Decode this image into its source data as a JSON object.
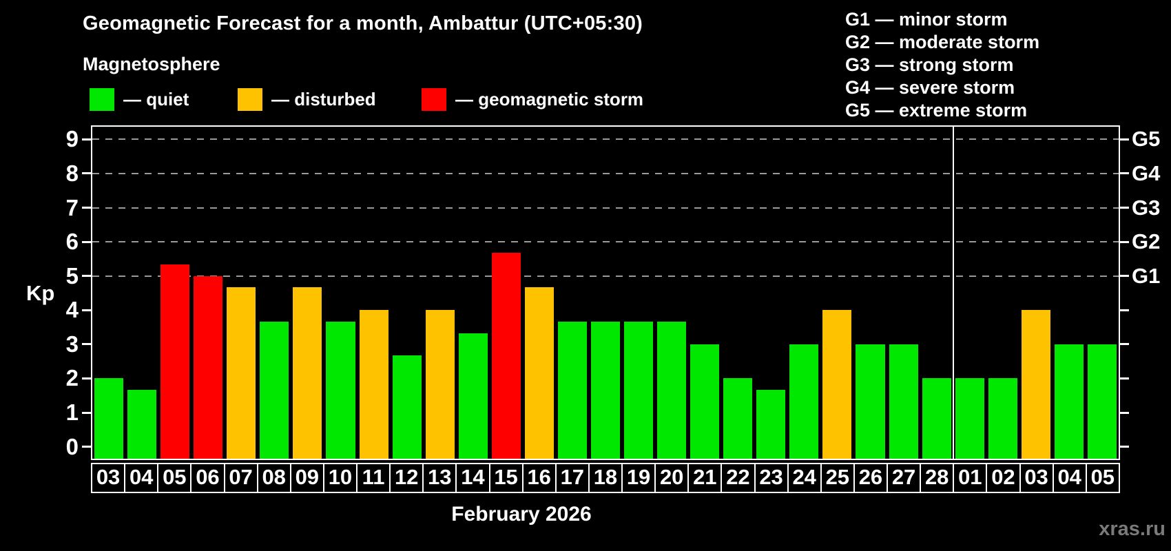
{
  "title": "Geomagnetic Forecast for a month, Ambattur (UTC+05:30)",
  "subtitle": "Magnetosphere",
  "legend": {
    "items": [
      {
        "status": "quiet",
        "label": "— quiet"
      },
      {
        "status": "disturbed",
        "label": "— disturbed"
      },
      {
        "status": "storm",
        "label": "— geomagnetic storm"
      }
    ]
  },
  "g_legend": [
    "G1 — minor storm",
    "G2 — moderate storm",
    "G3 — strong storm",
    "G4 — severe storm",
    "G5 — extreme storm"
  ],
  "axis": {
    "y_label": "Kp"
  },
  "x_axis": {
    "month_label": "February 2026"
  },
  "watermark": "xras.ru",
  "colors": {
    "quiet": "#00e800",
    "disturbed": "#ffc200",
    "storm": "#ff0000",
    "axis": "#ffffff",
    "grid": "#9b9b9b",
    "background": "#000000",
    "watermark": "#7a7a7a"
  },
  "chart_data": {
    "type": "bar",
    "title": "Geomagnetic Forecast for a month, Ambattur (UTC+05:30)",
    "xlabel": "February 2026",
    "ylabel": "Kp",
    "ylim": [
      -0.35,
      9.37
    ],
    "y_ticks": [
      0,
      1,
      2,
      3,
      4,
      5,
      6,
      7,
      8,
      9
    ],
    "grid_levels": [
      5,
      6,
      7,
      8,
      9
    ],
    "right_axis_labels": [
      {
        "kp": 5,
        "label": "G1"
      },
      {
        "kp": 6,
        "label": "G2"
      },
      {
        "kp": 7,
        "label": "G3"
      },
      {
        "kp": 8,
        "label": "G4"
      },
      {
        "kp": 9,
        "label": "G5"
      }
    ],
    "legend_position": "top-left",
    "grid": "dashed horizontal at G-storm levels only",
    "month_divider_index": 26,
    "days": [
      {
        "label": "03",
        "kp": 2.0,
        "status": "quiet"
      },
      {
        "label": "04",
        "kp": 1.67,
        "status": "quiet"
      },
      {
        "label": "05",
        "kp": 5.33,
        "status": "storm"
      },
      {
        "label": "06",
        "kp": 5.0,
        "status": "storm"
      },
      {
        "label": "07",
        "kp": 4.67,
        "status": "disturbed"
      },
      {
        "label": "08",
        "kp": 3.67,
        "status": "quiet"
      },
      {
        "label": "09",
        "kp": 4.67,
        "status": "disturbed"
      },
      {
        "label": "10",
        "kp": 3.67,
        "status": "quiet"
      },
      {
        "label": "11",
        "kp": 4.0,
        "status": "disturbed"
      },
      {
        "label": "12",
        "kp": 2.67,
        "status": "quiet"
      },
      {
        "label": "13",
        "kp": 4.0,
        "status": "disturbed"
      },
      {
        "label": "14",
        "kp": 3.33,
        "status": "quiet"
      },
      {
        "label": "15",
        "kp": 5.67,
        "status": "storm"
      },
      {
        "label": "16",
        "kp": 4.67,
        "status": "disturbed"
      },
      {
        "label": "17",
        "kp": 3.67,
        "status": "quiet"
      },
      {
        "label": "18",
        "kp": 3.67,
        "status": "quiet"
      },
      {
        "label": "19",
        "kp": 3.67,
        "status": "quiet"
      },
      {
        "label": "20",
        "kp": 3.67,
        "status": "quiet"
      },
      {
        "label": "21",
        "kp": 3.0,
        "status": "quiet"
      },
      {
        "label": "22",
        "kp": 2.0,
        "status": "quiet"
      },
      {
        "label": "23",
        "kp": 1.67,
        "status": "quiet"
      },
      {
        "label": "24",
        "kp": 3.0,
        "status": "quiet"
      },
      {
        "label": "25",
        "kp": 4.0,
        "status": "disturbed"
      },
      {
        "label": "26",
        "kp": 3.0,
        "status": "quiet"
      },
      {
        "label": "27",
        "kp": 3.0,
        "status": "quiet"
      },
      {
        "label": "28",
        "kp": 2.0,
        "status": "quiet"
      },
      {
        "label": "01",
        "kp": 2.0,
        "status": "quiet"
      },
      {
        "label": "02",
        "kp": 2.0,
        "status": "quiet"
      },
      {
        "label": "03",
        "kp": 4.0,
        "status": "disturbed"
      },
      {
        "label": "04",
        "kp": 3.0,
        "status": "quiet"
      },
      {
        "label": "05",
        "kp": 3.0,
        "status": "quiet"
      }
    ]
  }
}
